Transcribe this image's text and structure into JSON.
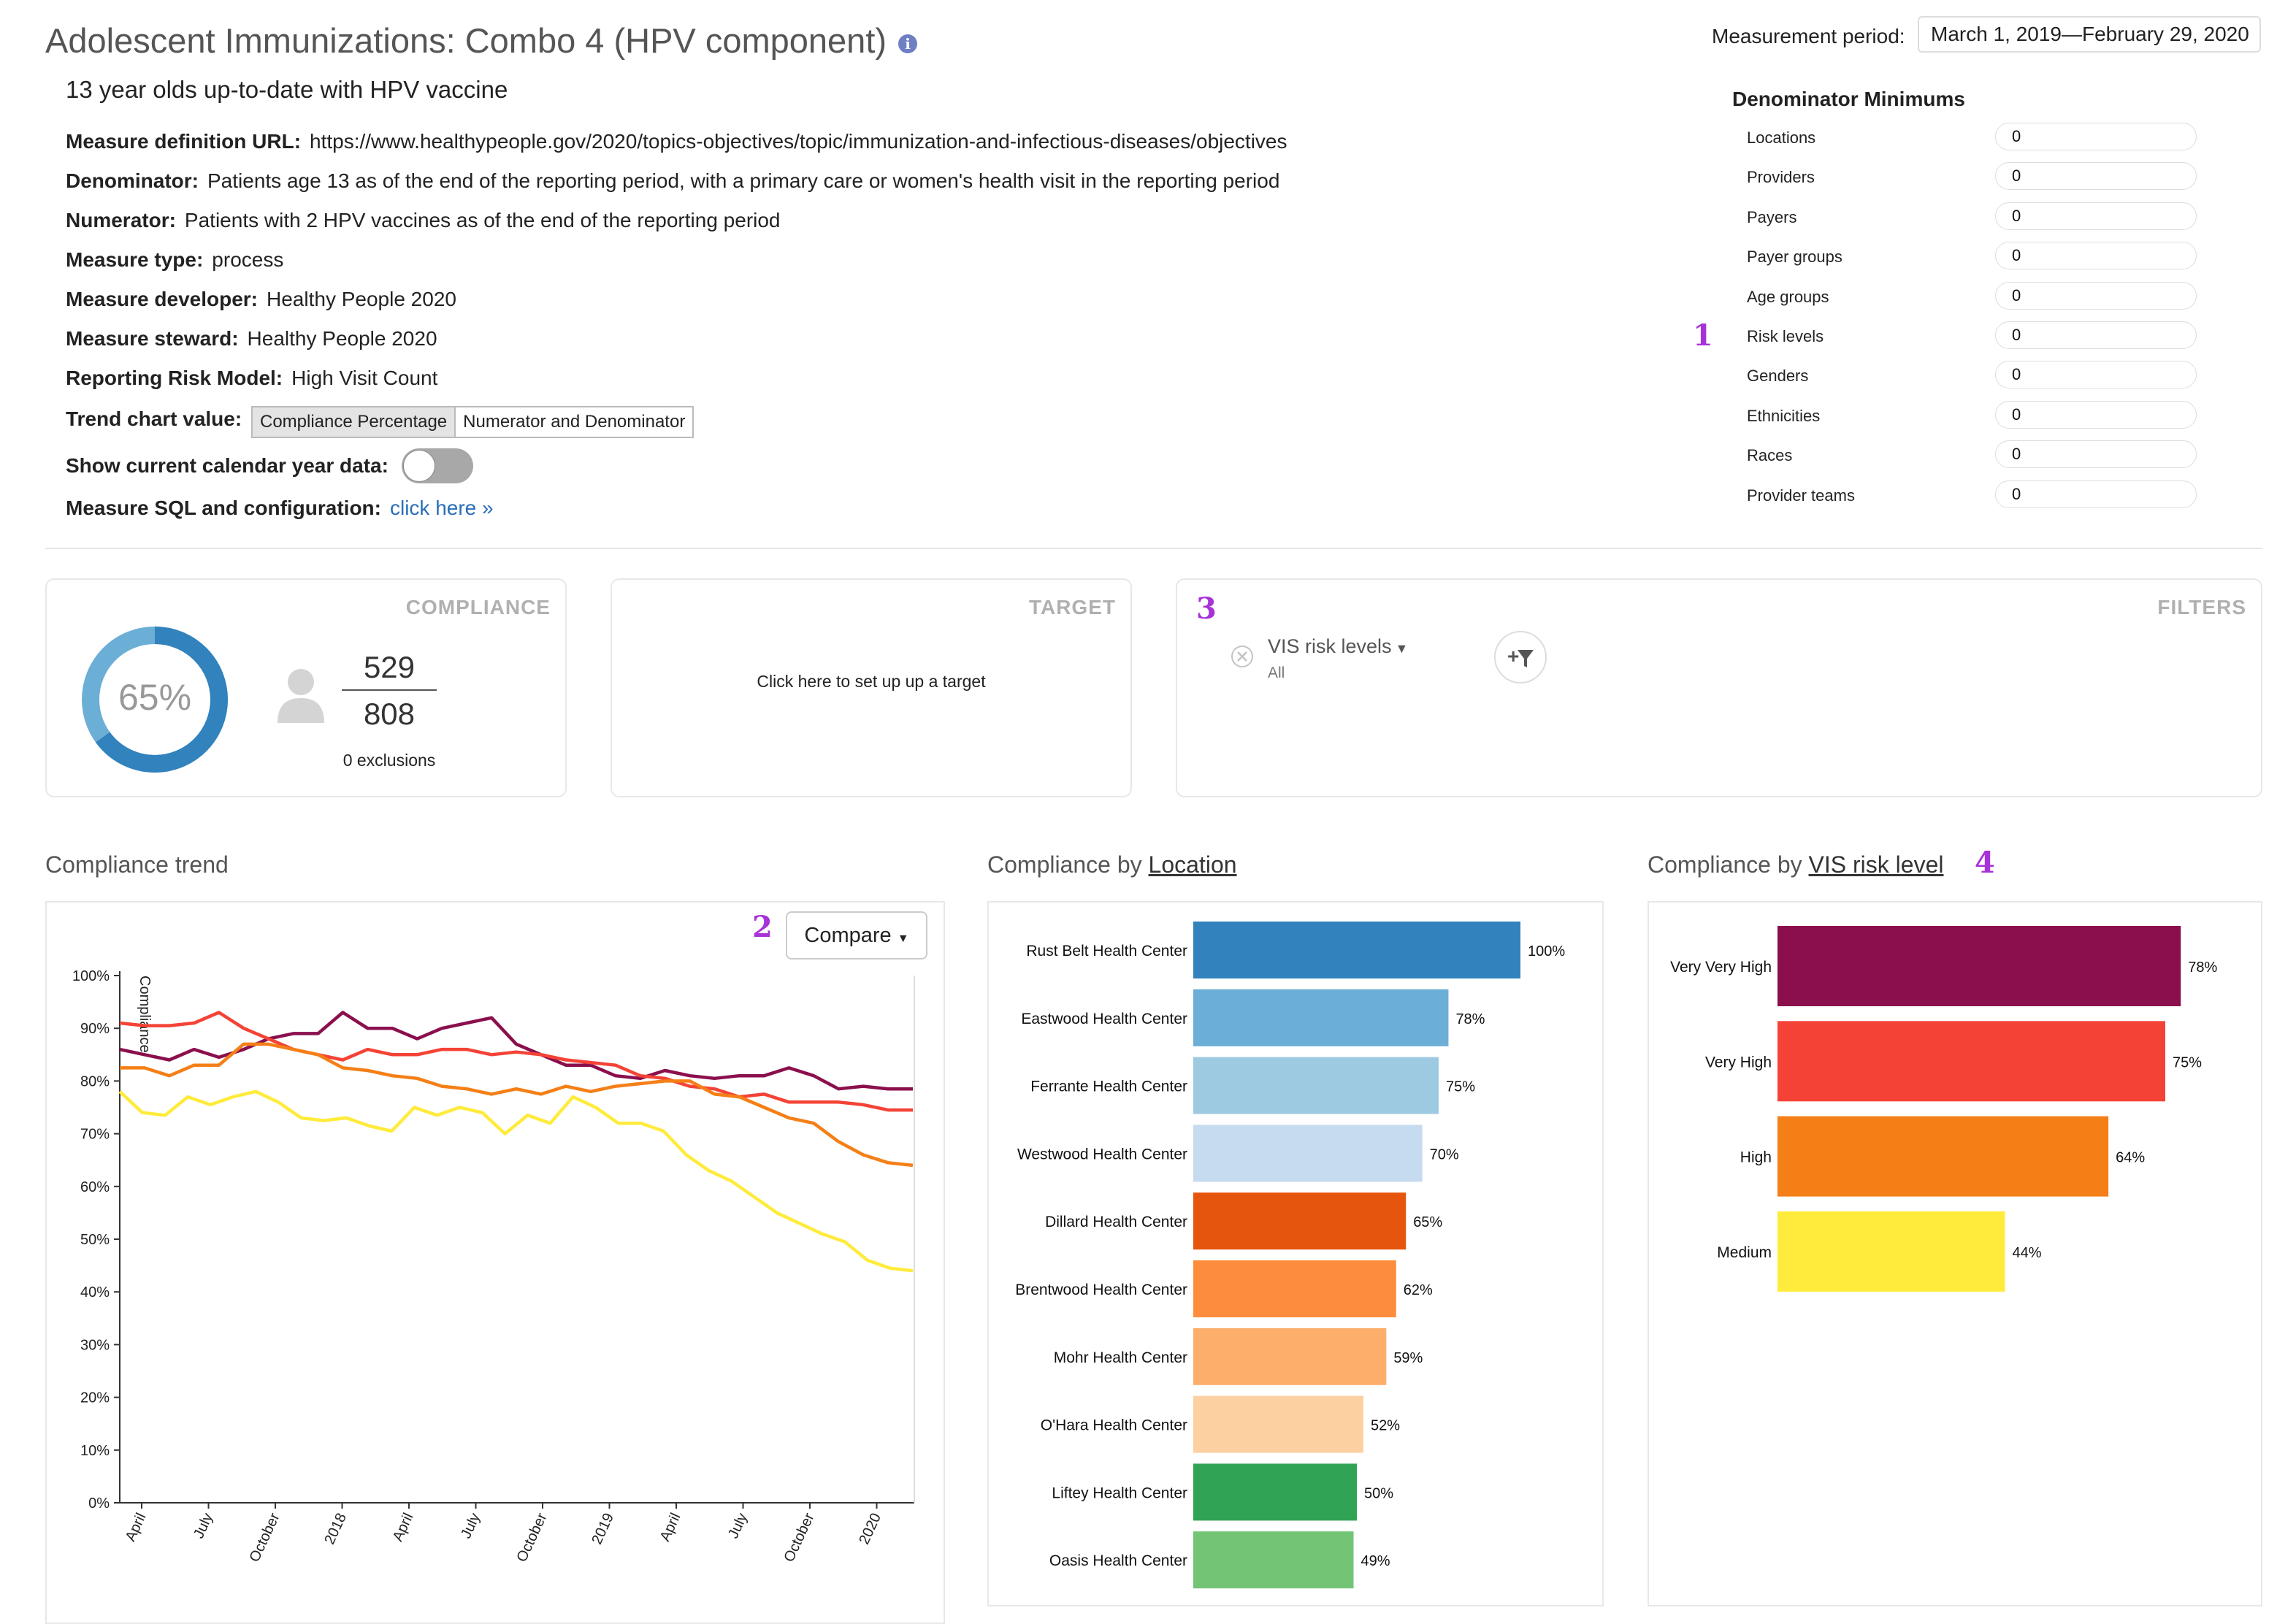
{
  "header": {
    "title": "Adolescent Immunizations: Combo 4 (HPV component)",
    "subtitle": "13 year olds up-to-date with HPV vaccine",
    "measurement_period_label": "Measurement period:",
    "measurement_period_value": "March 1, 2019—February 29, 2020"
  },
  "definition": [
    {
      "label": "Measure definition URL:",
      "value": "https://www.healthypeople.gov/2020/topics-objectives/topic/immunization-and-infectious-diseases/objectives"
    },
    {
      "label": "Denominator:",
      "value": "Patients age 13 as of the end of the reporting period, with a primary care or women's health visit in the reporting period"
    },
    {
      "label": "Numerator:",
      "value": "Patients with 2 HPV vaccines as of the end of the reporting period"
    },
    {
      "label": "Measure type:",
      "value": "process"
    },
    {
      "label": "Measure developer:",
      "value": "Healthy People 2020"
    },
    {
      "label": "Measure steward:",
      "value": "Healthy People 2020"
    },
    {
      "label": "Reporting Risk Model:",
      "value": "High Visit Count"
    }
  ],
  "trend_value": {
    "label": "Trend chart value:",
    "options": [
      "Compliance Percentage",
      "Numerator and Denominator"
    ]
  },
  "calendar_toggle_label": "Show current calendar year data:",
  "sql_config": {
    "label": "Measure SQL and configuration:",
    "link": "click here »"
  },
  "denominator_minimums": {
    "title": "Denominator Minimums",
    "rows": [
      {
        "label": "Locations",
        "value": "0"
      },
      {
        "label": "Providers",
        "value": "0"
      },
      {
        "label": "Payers",
        "value": "0"
      },
      {
        "label": "Payer groups",
        "value": "0"
      },
      {
        "label": "Age groups",
        "value": "0"
      },
      {
        "label": "Risk levels",
        "value": "0"
      },
      {
        "label": "Genders",
        "value": "0"
      },
      {
        "label": "Ethnicities",
        "value": "0"
      },
      {
        "label": "Races",
        "value": "0"
      },
      {
        "label": "Provider teams",
        "value": "0"
      }
    ]
  },
  "callouts": [
    "1",
    "2",
    "3",
    "4"
  ],
  "compliance": {
    "head": "COMPLIANCE",
    "percent_label": "65%",
    "percent": 65,
    "numerator": "529",
    "denominator": "808",
    "exclusions": "0 exclusions"
  },
  "target": {
    "head": "TARGET",
    "text": "Click here to set up up a target"
  },
  "filters": {
    "head": "FILTERS",
    "filter_label": "VIS risk levels",
    "filter_value": "All"
  },
  "colors": {
    "very_very_high": "#8b0f4d",
    "very_high": "#f44336",
    "high": "#f57f17",
    "medium": "#ffeb3b",
    "donut_main": "#3182bd",
    "donut_rest": "#6baed6"
  },
  "trend": {
    "title": "Compliance trend",
    "compare_label": "Compare",
    "y_axis_label": "Compliance"
  },
  "by_location": {
    "title_prefix": "Compliance by",
    "title_link": "Location"
  },
  "by_risk": {
    "title_prefix": "Compliance by",
    "title_link": "VIS risk level"
  },
  "chart_data": [
    {
      "type": "line",
      "title": "Compliance trend",
      "ylabel": "Compliance",
      "ylim": [
        0,
        100
      ],
      "y_ticks": [
        "0%",
        "10%",
        "20%",
        "30%",
        "40%",
        "50%",
        "60%",
        "70%",
        "80%",
        "90%",
        "100%"
      ],
      "x_ticks": [
        "April",
        "July",
        "October",
        "2018",
        "April",
        "July",
        "October",
        "2019",
        "April",
        "July",
        "October",
        "2020"
      ],
      "series": [
        {
          "color": "#8b0f4d",
          "values": [
            86,
            85,
            84,
            86,
            84.5,
            86,
            88,
            89,
            89,
            93,
            90,
            90,
            88,
            90,
            91,
            92,
            87,
            85,
            83,
            83,
            81,
            80.5,
            82,
            81,
            80.5,
            81,
            81,
            82.5,
            81,
            78.5,
            79,
            78.5,
            78.5
          ]
        },
        {
          "color": "#f44336",
          "values": [
            91,
            90.5,
            90.5,
            91,
            93,
            90,
            88,
            86,
            85,
            84,
            86,
            85,
            85,
            86,
            86,
            85,
            85.5,
            85,
            84,
            83.5,
            83,
            81,
            80.5,
            79,
            78.5,
            77,
            77.5,
            76,
            76,
            76,
            75.5,
            74.5,
            74.5
          ]
        },
        {
          "color": "#f57f17",
          "values": [
            82.5,
            82.5,
            81,
            83,
            83,
            87,
            87,
            86,
            85,
            82.5,
            82,
            81,
            80.5,
            79,
            78.5,
            77.5,
            78.5,
            77.5,
            79,
            78,
            79,
            79.5,
            80,
            80,
            77.5,
            77,
            75,
            73,
            72,
            68.5,
            66,
            64.5,
            64
          ]
        },
        {
          "color": "#ffeb3b",
          "values": [
            78,
            74,
            73.5,
            77,
            75.5,
            77,
            78,
            76,
            73,
            72.5,
            73,
            71.5,
            70.5,
            75,
            73.5,
            75,
            74,
            70,
            73.5,
            72,
            77,
            75,
            72,
            72,
            70.5,
            66,
            63,
            61,
            58,
            55,
            53,
            51,
            49.5,
            46,
            44.5,
            44
          ]
        }
      ]
    },
    {
      "type": "bar",
      "title": "Compliance by Location",
      "categories": [
        "Rust Belt Health Center",
        "Eastwood Health Center",
        "Ferrante Health Center",
        "Westwood Health Center",
        "Dillard Health Center",
        "Brentwood Health Center",
        "Mohr Health Center",
        "O'Hara Health Center",
        "Liftey Health Center",
        "Oasis Health Center"
      ],
      "values": [
        100,
        78,
        75,
        70,
        65,
        62,
        59,
        52,
        50,
        49
      ],
      "value_labels": [
        "100%",
        "78%",
        "75%",
        "70%",
        "65%",
        "62%",
        "59%",
        "52%",
        "50%",
        "49%"
      ],
      "colors": [
        "#3182bd",
        "#6baed6",
        "#9ecae1",
        "#c6dbef",
        "#e6550d",
        "#fd8d3c",
        "#fdae6b",
        "#fdd0a2",
        "#31a354",
        "#74c476"
      ]
    },
    {
      "type": "bar",
      "title": "Compliance by VIS risk level",
      "categories": [
        "Very Very High",
        "Very High",
        "High",
        "Medium"
      ],
      "values": [
        78,
        75,
        64,
        44
      ],
      "value_labels": [
        "78%",
        "75%",
        "64%",
        "44%"
      ],
      "colors": [
        "#8b0f4d",
        "#f44336",
        "#f57f17",
        "#ffeb3b"
      ]
    }
  ]
}
